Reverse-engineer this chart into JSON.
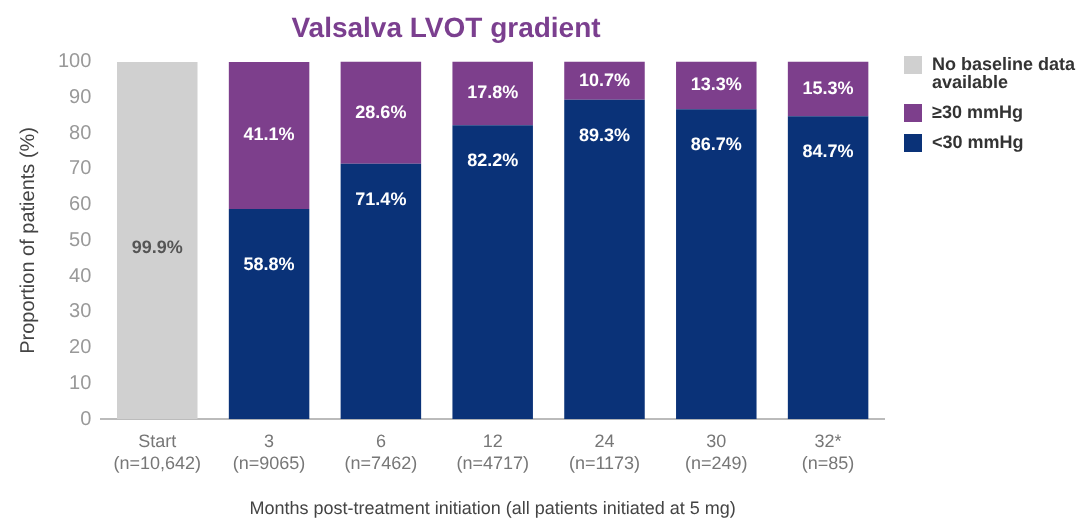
{
  "chart_data": {
    "type": "bar",
    "stacked": true,
    "title": "Valsalva LVOT gradient",
    "xlabel": "Months post-treatment initiation (all patients initiated at 5 mg)",
    "ylabel": "Proportion of patients (%)",
    "categories": [
      "Start\n(n=10,642)",
      "3\n(n=9065)",
      "6\n(n=7462)",
      "12\n(n=4717)",
      "24\n(n=1173)",
      "30\n(n=249)",
      "32*\n(n=85)"
    ],
    "ylim": [
      0,
      100
    ],
    "yticks": [
      0,
      10,
      20,
      30,
      40,
      50,
      60,
      70,
      80,
      90,
      100
    ],
    "grid": false,
    "legend": "right",
    "series": [
      {
        "name": "No baseline data available",
        "color": "#d0d0d0",
        "values": [
          99.9,
          null,
          null,
          null,
          null,
          null,
          null
        ],
        "value_labels": [
          "99.9%",
          null,
          null,
          null,
          null,
          null,
          null
        ]
      },
      {
        "name": "<30 mmHg",
        "color": "#0a3278",
        "values": [
          null,
          58.8,
          71.4,
          82.2,
          89.3,
          86.7,
          84.7
        ],
        "value_labels": [
          null,
          "58.8%",
          "71.4%",
          "82.2%",
          "89.3%",
          "86.7%",
          "84.7%"
        ]
      },
      {
        "name": "≥30 mmHg",
        "color": "#7d3f8c",
        "values": [
          null,
          41.1,
          28.6,
          17.8,
          10.7,
          13.3,
          15.3
        ],
        "value_labels": [
          null,
          "41.1%",
          "28.6%",
          "17.8%",
          "10.7%",
          "13.3%",
          "15.3%"
        ]
      }
    ]
  }
}
